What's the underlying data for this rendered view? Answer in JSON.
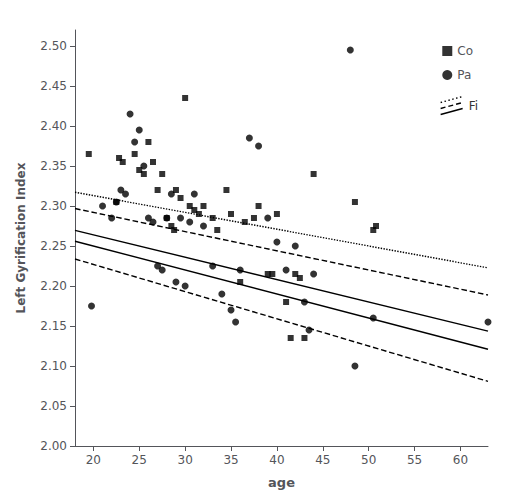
{
  "chart_data": {
    "type": "scatter",
    "title": "",
    "xlabel": "age",
    "ylabel": "Left Gyrification Index",
    "xlim": [
      18,
      63
    ],
    "ylim": [
      2.0,
      2.52
    ],
    "xticks": [
      20,
      25,
      30,
      35,
      40,
      45,
      50,
      55,
      60
    ],
    "yticks": [
      {
        "value": 2.0,
        "label": "2.00"
      },
      2.05,
      {
        "value": 2.1,
        "label": "2.10"
      },
      2.15,
      {
        "value": 2.2,
        "label": "2.20"
      },
      2.25,
      {
        "value": 2.3,
        "label": "2.30"
      },
      2.35,
      {
        "value": 2.4,
        "label": "2.40"
      },
      2.45,
      {
        "value": 2.5,
        "label": "2.50"
      }
    ],
    "legend": "upper right",
    "annotations": [
      "Fi"
    ],
    "series": [
      {
        "name": "Co",
        "type": "scatter",
        "marker": "square",
        "color": "#000000",
        "x": [
          19.5,
          22.5,
          22.8,
          23.2,
          24.5,
          25.0,
          25.5,
          26.0,
          26.5,
          27.0,
          27.5,
          28.0,
          28.5,
          28.8,
          29.0,
          29.5,
          30.0,
          30.5,
          31.0,
          31.5,
          32.0,
          33.0,
          33.5,
          34.5,
          35.0,
          36.0,
          36.5,
          37.5,
          38.0,
          39.0,
          39.5,
          40.0,
          41.0,
          41.5,
          42.0,
          42.5,
          43.0,
          44.0,
          48.5,
          50.5,
          50.8
        ],
        "values": [
          2.365,
          2.305,
          2.36,
          2.355,
          2.365,
          2.345,
          2.34,
          2.38,
          2.355,
          2.32,
          2.34,
          2.285,
          2.275,
          2.27,
          2.32,
          2.31,
          2.435,
          2.3,
          2.295,
          2.29,
          2.3,
          2.285,
          2.27,
          2.32,
          2.29,
          2.205,
          2.28,
          2.285,
          2.3,
          2.215,
          2.215,
          2.29,
          2.18,
          2.135,
          2.215,
          2.21,
          2.135,
          2.34,
          2.305,
          2.27,
          2.275
        ]
      },
      {
        "name": "Pa",
        "type": "scatter",
        "marker": "circle",
        "color": "#000000",
        "x": [
          19.8,
          21.0,
          22.0,
          22.5,
          23.0,
          23.5,
          24.0,
          24.5,
          25.0,
          25.5,
          26.0,
          26.5,
          27.0,
          27.5,
          28.0,
          28.5,
          29.0,
          29.5,
          30.0,
          30.5,
          31.0,
          32.0,
          33.0,
          34.0,
          35.0,
          35.5,
          36.0,
          37.0,
          38.0,
          39.0,
          40.0,
          41.0,
          42.0,
          43.0,
          43.5,
          44.0,
          48.0,
          48.5,
          50.5,
          63.0
        ],
        "values": [
          2.175,
          2.3,
          2.285,
          2.305,
          2.32,
          2.315,
          2.415,
          2.38,
          2.395,
          2.35,
          2.285,
          2.28,
          2.225,
          2.22,
          2.285,
          2.315,
          2.205,
          2.285,
          2.2,
          2.28,
          2.315,
          2.275,
          2.225,
          2.19,
          2.17,
          2.155,
          2.22,
          2.385,
          2.375,
          2.285,
          2.255,
          2.22,
          2.25,
          2.18,
          2.145,
          2.215,
          2.495,
          2.1,
          2.16,
          2.155
        ]
      },
      {
        "type": "line",
        "line_style": "dotted",
        "color": "#000000",
        "x": [
          18,
          63
        ],
        "values": [
          2.3172,
          2.2227
        ]
      },
      {
        "type": "line",
        "line_style": "dashed",
        "color": "#000000",
        "x": [
          18,
          63
        ],
        "values": [
          2.2968,
          2.1888
        ]
      },
      {
        "type": "line",
        "line_style": "solid",
        "color": "#000000",
        "x": [
          18,
          63
        ],
        "values": [
          2.2696,
          2.1436
        ]
      },
      {
        "type": "line",
        "line_style": "solid",
        "color": "#000000",
        "x": [
          18,
          63
        ],
        "values": [
          2.256,
          2.121
        ]
      },
      {
        "type": "line",
        "line_style": "dashed",
        "color": "#000000",
        "x": [
          18,
          63
        ],
        "values": [
          2.2338,
          2.0808
        ]
      }
    ]
  }
}
